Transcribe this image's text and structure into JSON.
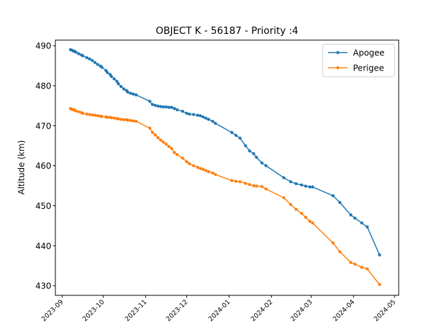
{
  "chart_data": {
    "type": "line",
    "title": "OBJECT K - 56187 - Priority :4",
    "xlabel": "",
    "ylabel": "Altitude (km)",
    "x_ticks": [
      "2023-09",
      "2023-10",
      "2023-11",
      "2023-12",
      "2024-01",
      "2024-02",
      "2024-03",
      "2024-04",
      "2024-05"
    ],
    "xlim": [
      "2023-08-27",
      "2024-05-04"
    ],
    "y_ticks": [
      430,
      440,
      450,
      460,
      470,
      480,
      490
    ],
    "ylim": [
      427.6,
      491.4
    ],
    "grid": false,
    "legend_position": "upper right",
    "series": [
      {
        "name": "Apogee",
        "color": "#1f77b4",
        "points": [
          [
            "2023-09-07",
            489.0
          ],
          [
            "2023-09-08",
            488.9
          ],
          [
            "2023-09-09",
            488.7
          ],
          [
            "2023-09-10",
            488.6
          ],
          [
            "2023-09-11",
            488.4
          ],
          [
            "2023-09-13",
            488.0
          ],
          [
            "2023-09-15",
            487.7
          ],
          [
            "2023-09-16",
            487.5
          ],
          [
            "2023-09-19",
            487.0
          ],
          [
            "2023-09-21",
            486.7
          ],
          [
            "2023-09-23",
            486.3
          ],
          [
            "2023-09-25",
            485.8
          ],
          [
            "2023-09-27",
            485.3
          ],
          [
            "2023-09-29",
            484.9
          ],
          [
            "2023-09-30",
            484.6
          ],
          [
            "2023-10-03",
            483.8
          ],
          [
            "2023-10-04",
            483.3
          ],
          [
            "2023-10-06",
            482.8
          ],
          [
            "2023-10-07",
            482.3
          ],
          [
            "2023-10-09",
            481.7
          ],
          [
            "2023-10-11",
            481.1
          ],
          [
            "2023-10-12",
            480.5
          ],
          [
            "2023-10-14",
            479.8
          ],
          [
            "2023-10-16",
            479.2
          ],
          [
            "2023-10-18",
            478.8
          ],
          [
            "2023-10-19",
            478.4
          ],
          [
            "2023-10-21",
            478.1
          ],
          [
            "2023-10-23",
            477.9
          ],
          [
            "2023-10-25",
            477.7
          ],
          [
            "2023-11-04",
            476.1
          ],
          [
            "2023-11-06",
            475.3
          ],
          [
            "2023-11-08",
            475.1
          ],
          [
            "2023-11-10",
            474.9
          ],
          [
            "2023-11-12",
            474.8
          ],
          [
            "2023-11-14",
            474.7
          ],
          [
            "2023-11-16",
            474.7
          ],
          [
            "2023-11-18",
            474.6
          ],
          [
            "2023-11-20",
            474.6
          ],
          [
            "2023-11-22",
            474.3
          ],
          [
            "2023-11-24",
            474.0
          ],
          [
            "2023-11-28",
            473.6
          ],
          [
            "2023-12-01",
            473.1
          ],
          [
            "2023-12-03",
            472.9
          ],
          [
            "2023-12-06",
            472.8
          ],
          [
            "2023-12-09",
            472.6
          ],
          [
            "2023-12-11",
            472.5
          ],
          [
            "2023-12-13",
            472.2
          ],
          [
            "2023-12-15",
            471.9
          ],
          [
            "2023-12-17",
            471.6
          ],
          [
            "2023-12-20",
            471.1
          ],
          [
            "2023-12-22",
            470.6
          ],
          [
            "2024-01-03",
            468.3
          ],
          [
            "2024-01-06",
            467.6
          ],
          [
            "2024-01-09",
            466.9
          ],
          [
            "2024-01-13",
            465.0
          ],
          [
            "2024-01-16",
            463.7
          ],
          [
            "2024-01-19",
            463.0
          ],
          [
            "2024-01-21",
            462.1
          ],
          [
            "2024-01-25",
            460.7
          ],
          [
            "2024-01-28",
            460.0
          ],
          [
            "2024-02-10",
            457.0
          ],
          [
            "2024-02-15",
            456.0
          ],
          [
            "2024-02-19",
            455.5
          ],
          [
            "2024-02-23",
            455.2
          ],
          [
            "2024-02-26",
            454.9
          ],
          [
            "2024-02-29",
            454.7
          ],
          [
            "2024-03-02",
            454.7
          ],
          [
            "2024-03-17",
            452.5
          ],
          [
            "2024-03-22",
            450.8
          ],
          [
            "2024-03-30",
            447.7
          ],
          [
            "2024-04-02",
            446.9
          ],
          [
            "2024-04-07",
            445.7
          ],
          [
            "2024-04-11",
            444.7
          ],
          [
            "2024-04-20",
            437.7
          ]
        ]
      },
      {
        "name": "Perigee",
        "color": "#ff7f0e",
        "points": [
          [
            "2023-09-07",
            474.3
          ],
          [
            "2023-09-08",
            474.1
          ],
          [
            "2023-09-09",
            474.0
          ],
          [
            "2023-09-10",
            473.9
          ],
          [
            "2023-09-11",
            473.7
          ],
          [
            "2023-09-13",
            473.5
          ],
          [
            "2023-09-15",
            473.3
          ],
          [
            "2023-09-16",
            473.1
          ],
          [
            "2023-09-19",
            472.9
          ],
          [
            "2023-09-21",
            472.8
          ],
          [
            "2023-09-23",
            472.7
          ],
          [
            "2023-09-25",
            472.6
          ],
          [
            "2023-09-27",
            472.5
          ],
          [
            "2023-09-29",
            472.4
          ],
          [
            "2023-09-30",
            472.3
          ],
          [
            "2023-10-03",
            472.2
          ],
          [
            "2023-10-04",
            472.1
          ],
          [
            "2023-10-06",
            472.1
          ],
          [
            "2023-10-07",
            472.0
          ],
          [
            "2023-10-09",
            471.9
          ],
          [
            "2023-10-11",
            471.8
          ],
          [
            "2023-10-12",
            471.7
          ],
          [
            "2023-10-14",
            471.6
          ],
          [
            "2023-10-16",
            471.5
          ],
          [
            "2023-10-18",
            471.5
          ],
          [
            "2023-10-19",
            471.4
          ],
          [
            "2023-10-21",
            471.3
          ],
          [
            "2023-10-23",
            471.2
          ],
          [
            "2023-10-25",
            471.1
          ],
          [
            "2023-11-04",
            469.4
          ],
          [
            "2023-11-06",
            468.3
          ],
          [
            "2023-11-08",
            467.7
          ],
          [
            "2023-11-10",
            467.0
          ],
          [
            "2023-11-12",
            466.4
          ],
          [
            "2023-11-14",
            465.9
          ],
          [
            "2023-11-16",
            465.4
          ],
          [
            "2023-11-18",
            464.8
          ],
          [
            "2023-11-20",
            464.3
          ],
          [
            "2023-11-22",
            463.3
          ],
          [
            "2023-11-24",
            462.8
          ],
          [
            "2023-11-28",
            461.9
          ],
          [
            "2023-12-01",
            461.0
          ],
          [
            "2023-12-03",
            460.5
          ],
          [
            "2023-12-06",
            460.0
          ],
          [
            "2023-12-09",
            459.6
          ],
          [
            "2023-12-11",
            459.3
          ],
          [
            "2023-12-13",
            459.1
          ],
          [
            "2023-12-15",
            458.8
          ],
          [
            "2023-12-17",
            458.5
          ],
          [
            "2023-12-20",
            458.2
          ],
          [
            "2023-12-22",
            457.8
          ],
          [
            "2024-01-03",
            456.3
          ],
          [
            "2024-01-06",
            456.1
          ],
          [
            "2024-01-09",
            456.0
          ],
          [
            "2024-01-13",
            455.6
          ],
          [
            "2024-01-16",
            455.3
          ],
          [
            "2024-01-19",
            455.0
          ],
          [
            "2024-01-21",
            454.9
          ],
          [
            "2024-01-25",
            454.8
          ],
          [
            "2024-01-28",
            454.2
          ],
          [
            "2024-02-10",
            452.0
          ],
          [
            "2024-02-15",
            450.3
          ],
          [
            "2024-02-19",
            449.1
          ],
          [
            "2024-02-23",
            448.1
          ],
          [
            "2024-02-26",
            447.1
          ],
          [
            "2024-02-29",
            446.1
          ],
          [
            "2024-03-02",
            445.7
          ],
          [
            "2024-03-17",
            440.7
          ],
          [
            "2024-03-22",
            438.5
          ],
          [
            "2024-03-30",
            435.8
          ],
          [
            "2024-04-02",
            435.4
          ],
          [
            "2024-04-07",
            434.6
          ],
          [
            "2024-04-11",
            434.2
          ],
          [
            "2024-04-20",
            430.3
          ]
        ]
      }
    ]
  }
}
